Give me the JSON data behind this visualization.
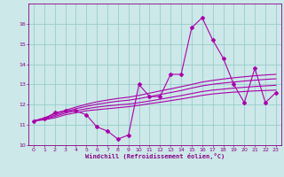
{
  "xlabel": "Windchill (Refroidissement éolien,°C)",
  "bg_color": "#cce8e8",
  "grid_color": "#99cccc",
  "line_color": "#aa00aa",
  "x_data": [
    0,
    1,
    2,
    3,
    4,
    5,
    6,
    7,
    8,
    9,
    10,
    11,
    12,
    13,
    14,
    15,
    16,
    17,
    18,
    19,
    20,
    21,
    22,
    23
  ],
  "y_main": [
    11.2,
    11.3,
    11.6,
    11.7,
    11.7,
    11.5,
    10.9,
    10.7,
    10.3,
    10.5,
    13.0,
    12.4,
    12.4,
    13.5,
    13.5,
    15.8,
    16.3,
    15.2,
    14.3,
    13.0,
    12.1,
    13.8,
    12.1,
    12.6
  ],
  "y_reg1": [
    11.2,
    11.25,
    11.35,
    11.5,
    11.6,
    11.7,
    11.75,
    11.8,
    11.85,
    11.9,
    11.97,
    12.05,
    12.12,
    12.2,
    12.28,
    12.37,
    12.46,
    12.53,
    12.58,
    12.62,
    12.65,
    12.68,
    12.7,
    12.72
  ],
  "y_reg2": [
    11.2,
    11.28,
    11.42,
    11.58,
    11.7,
    11.8,
    11.88,
    11.94,
    11.99,
    12.03,
    12.1,
    12.18,
    12.27,
    12.36,
    12.45,
    12.55,
    12.65,
    12.72,
    12.77,
    12.82,
    12.86,
    12.9,
    12.93,
    12.96
  ],
  "y_reg3": [
    11.2,
    11.3,
    11.48,
    11.65,
    11.8,
    11.92,
    12.02,
    12.1,
    12.17,
    12.22,
    12.3,
    12.4,
    12.5,
    12.6,
    12.7,
    12.82,
    12.93,
    13.01,
    13.07,
    13.12,
    13.17,
    13.21,
    13.25,
    13.28
  ],
  "y_reg4": [
    11.2,
    11.35,
    11.55,
    11.72,
    11.88,
    12.02,
    12.14,
    12.23,
    12.31,
    12.37,
    12.46,
    12.57,
    12.68,
    12.78,
    12.89,
    13.0,
    13.12,
    13.2,
    13.27,
    13.33,
    13.38,
    13.43,
    13.47,
    13.5
  ],
  "ylim": [
    10.0,
    17.0
  ],
  "xlim": [
    -0.5,
    23.5
  ],
  "yticks": [
    10,
    11,
    12,
    13,
    14,
    15,
    16
  ],
  "xticks": [
    0,
    1,
    2,
    3,
    4,
    5,
    6,
    7,
    8,
    9,
    10,
    11,
    12,
    13,
    14,
    15,
    16,
    17,
    18,
    19,
    20,
    21,
    22,
    23
  ]
}
